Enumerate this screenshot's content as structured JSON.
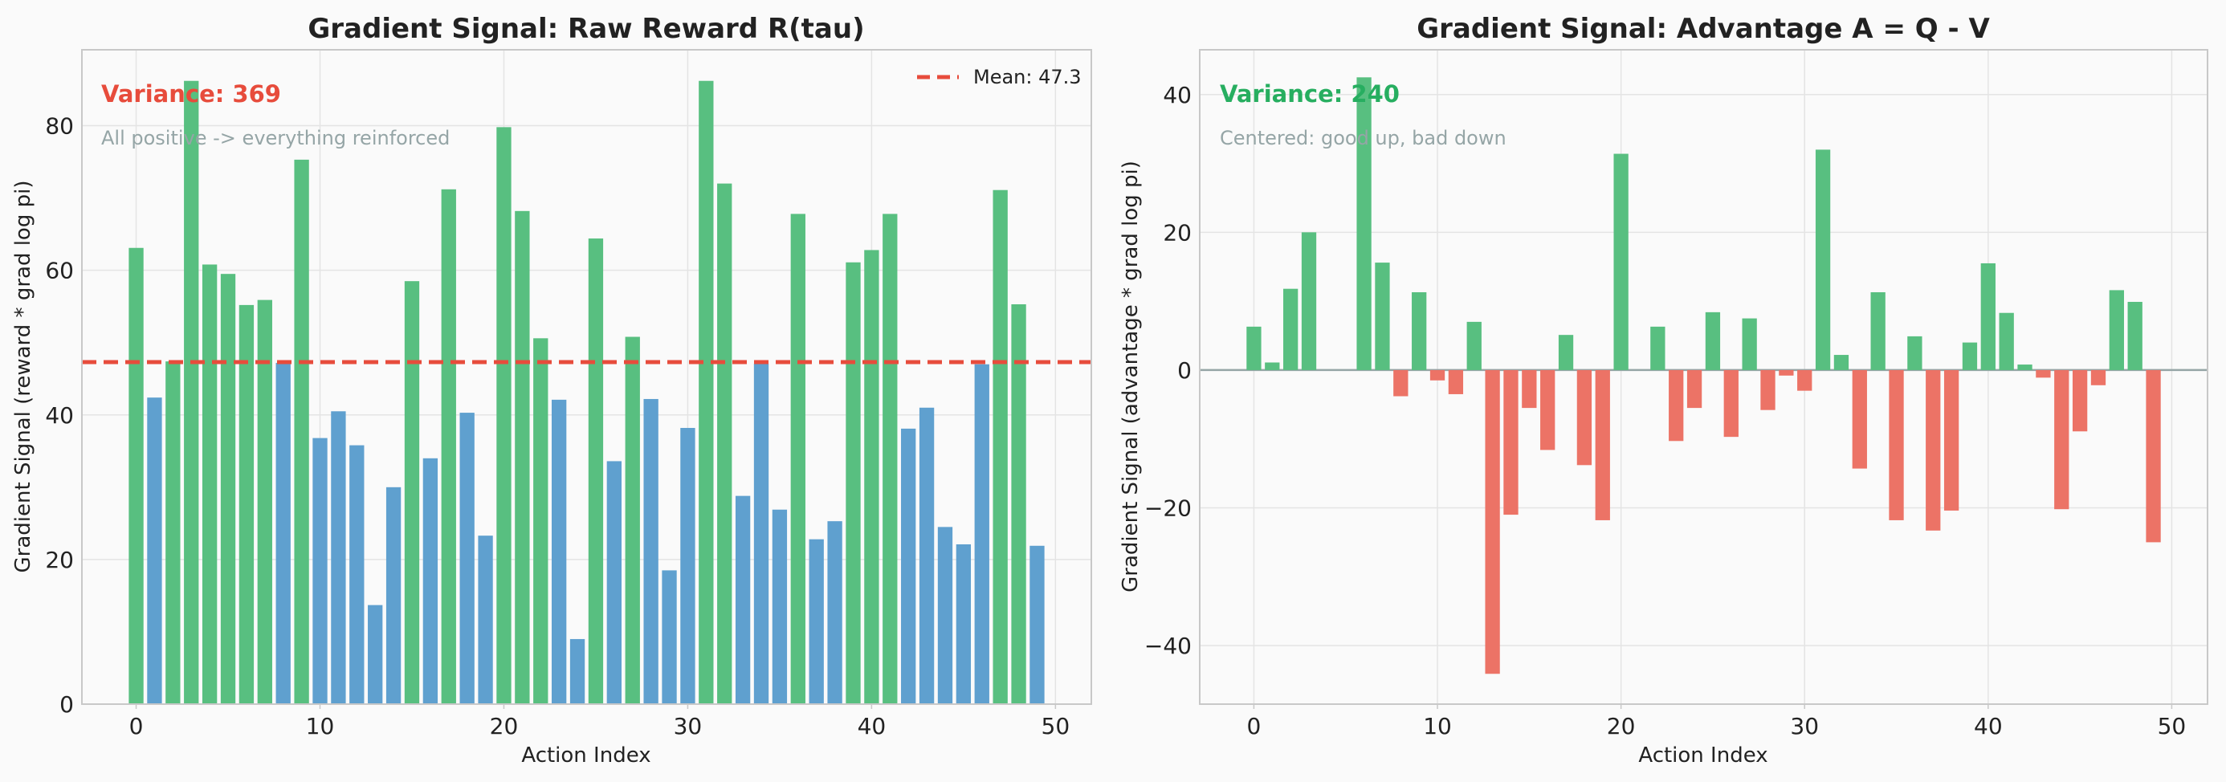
{
  "chart_data": [
    {
      "type": "bar",
      "title": "Gradient Signal: Raw Reward R(tau)",
      "xlabel": "Action Index",
      "ylabel": "Gradient Signal (reward * grad log pi)",
      "xlim": [
        -2.95,
        51.95
      ],
      "ylim": [
        0,
        90.5
      ],
      "xticks": [
        0,
        10,
        20,
        30,
        40,
        50
      ],
      "yticks": [
        0,
        20,
        40,
        60,
        80
      ],
      "grid": true,
      "x": [
        0,
        1,
        2,
        3,
        4,
        5,
        6,
        7,
        8,
        9,
        10,
        11,
        12,
        13,
        14,
        15,
        16,
        17,
        18,
        19,
        20,
        21,
        22,
        23,
        24,
        25,
        26,
        27,
        28,
        29,
        30,
        31,
        32,
        33,
        34,
        35,
        36,
        37,
        38,
        39,
        40,
        41,
        42,
        43,
        44,
        45,
        46,
        47,
        48,
        49
      ],
      "values": [
        63.1,
        42.4,
        47.4,
        86.2,
        60.8,
        59.5,
        55.2,
        55.9,
        47.2,
        75.3,
        36.8,
        40.5,
        35.8,
        13.7,
        30.0,
        58.5,
        34.0,
        71.2,
        40.3,
        23.3,
        79.8,
        68.2,
        50.6,
        42.1,
        9.0,
        64.4,
        33.6,
        50.8,
        42.2,
        18.5,
        38.2,
        86.2,
        72.0,
        28.8,
        47.1,
        26.9,
        67.8,
        22.8,
        25.3,
        61.1,
        62.8,
        67.8,
        38.1,
        41.0,
        24.5,
        22.1,
        47.0,
        71.1,
        55.3,
        21.9
      ],
      "color_rule": "above_mean_green",
      "mean": 47.3,
      "mean_line_label": "Mean: 47.3",
      "legend_loc": "upper right",
      "variance_text": "Variance: 369",
      "note_text": "All positive -> everything reinforced",
      "annotation_color": "#e74c3c"
    },
    {
      "type": "bar",
      "title": "Gradient Signal: Advantage A = Q - V",
      "xlabel": "Action Index",
      "ylabel": "Gradient Signal (advantage * grad log pi)",
      "xlim": [
        -2.95,
        51.95
      ],
      "ylim": [
        -48.5,
        46.5
      ],
      "xticks": [
        0,
        10,
        20,
        30,
        40,
        50
      ],
      "yticks": [
        -40,
        -20,
        0,
        20,
        40
      ],
      "grid": true,
      "zero_line": true,
      "x": [
        0,
        1,
        2,
        3,
        4,
        5,
        6,
        7,
        8,
        9,
        10,
        11,
        12,
        13,
        14,
        15,
        16,
        17,
        18,
        19,
        20,
        21,
        22,
        23,
        24,
        25,
        26,
        27,
        28,
        29,
        30,
        31,
        32,
        33,
        34,
        35,
        36,
        37,
        38,
        39,
        40,
        41,
        42,
        43,
        44,
        45,
        46,
        47,
        48,
        49
      ],
      "values": [
        6.3,
        1.1,
        11.8,
        20.0,
        0,
        0,
        42.5,
        15.6,
        -3.8,
        11.3,
        -1.5,
        -3.5,
        7.0,
        -44.1,
        -21.0,
        -5.5,
        -11.6,
        5.1,
        -13.8,
        -21.8,
        31.4,
        0,
        6.3,
        -10.3,
        -5.5,
        8.4,
        -9.7,
        7.5,
        -5.8,
        -0.8,
        -3.0,
        32.0,
        2.2,
        -14.3,
        11.3,
        -21.8,
        4.9,
        -23.3,
        -20.4,
        4.0,
        15.5,
        8.3,
        0.8,
        -1.1,
        -20.2,
        -8.9,
        -2.2,
        11.6,
        9.9,
        -25.0
      ],
      "color_rule": "sign",
      "variance_text": "Variance: 240",
      "note_text": "Centered: good up, bad down",
      "annotation_color": "#27ae60"
    }
  ],
  "colors": {
    "positive": "#58bf80",
    "below_mean": "#5fa0cf",
    "negative": "#ec7366",
    "mean_line": "#e74c3c",
    "zero_line": "#95a5a6",
    "grid": "#e4e4e4",
    "frame": "#c8c8c8",
    "plot_bg": "#fafafa"
  }
}
